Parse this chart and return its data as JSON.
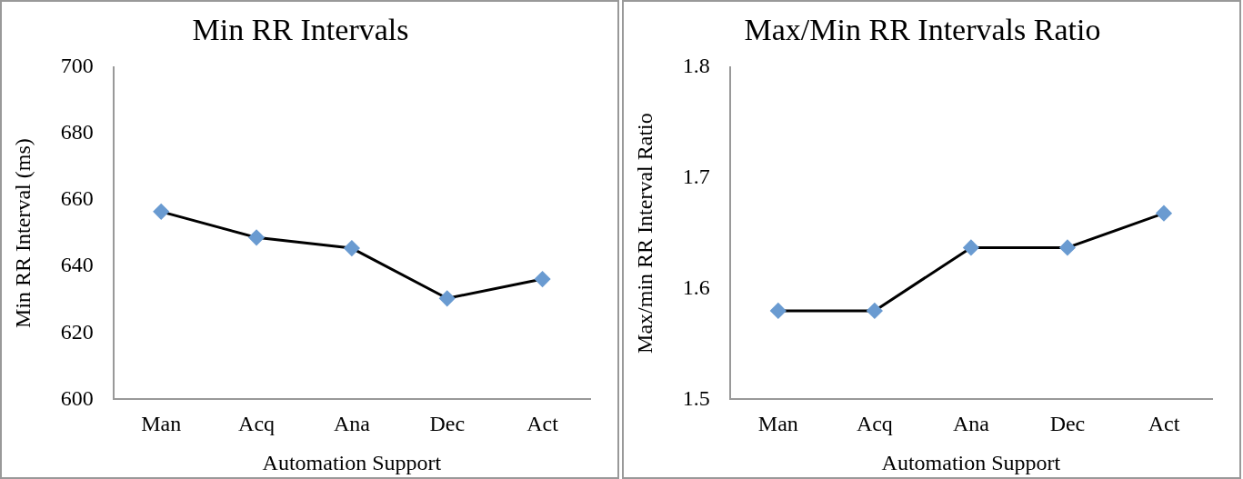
{
  "chart_data": [
    {
      "type": "line",
      "title": "Min RR Intervals",
      "xlabel": "Automation Support",
      "ylabel": "Min RR Interval (ms)",
      "categories": [
        "Man",
        "Acq",
        "Ana",
        "Dec",
        "Act"
      ],
      "series": [
        {
          "color": "#000000",
          "values": [
            656.5,
            648.7,
            645.5,
            630.4,
            636.2
          ]
        }
      ],
      "ylim": [
        600,
        700
      ],
      "yticks": [
        600,
        620,
        640,
        660,
        680,
        700
      ],
      "grid": false,
      "legend": false,
      "marker": "diamond",
      "line_style": "solid"
    },
    {
      "type": "line",
      "title": "Max/Min RR Intervals Ratio",
      "xlabel": "Automation Support",
      "ylabel": "Max/min RR Interval Ratio",
      "categories": [
        "Man",
        "Acq",
        "Ana",
        "Dec",
        "Act"
      ],
      "series": [
        {
          "color": "#000000",
          "values": [
            1.58,
            1.58,
            1.637,
            1.637,
            1.668
          ]
        }
      ],
      "ylim": [
        1.5,
        1.8
      ],
      "yticks": [
        1.5,
        1.6,
        1.7,
        1.8
      ],
      "grid": false,
      "legend": false,
      "marker": "diamond",
      "line_style": "solid"
    }
  ]
}
